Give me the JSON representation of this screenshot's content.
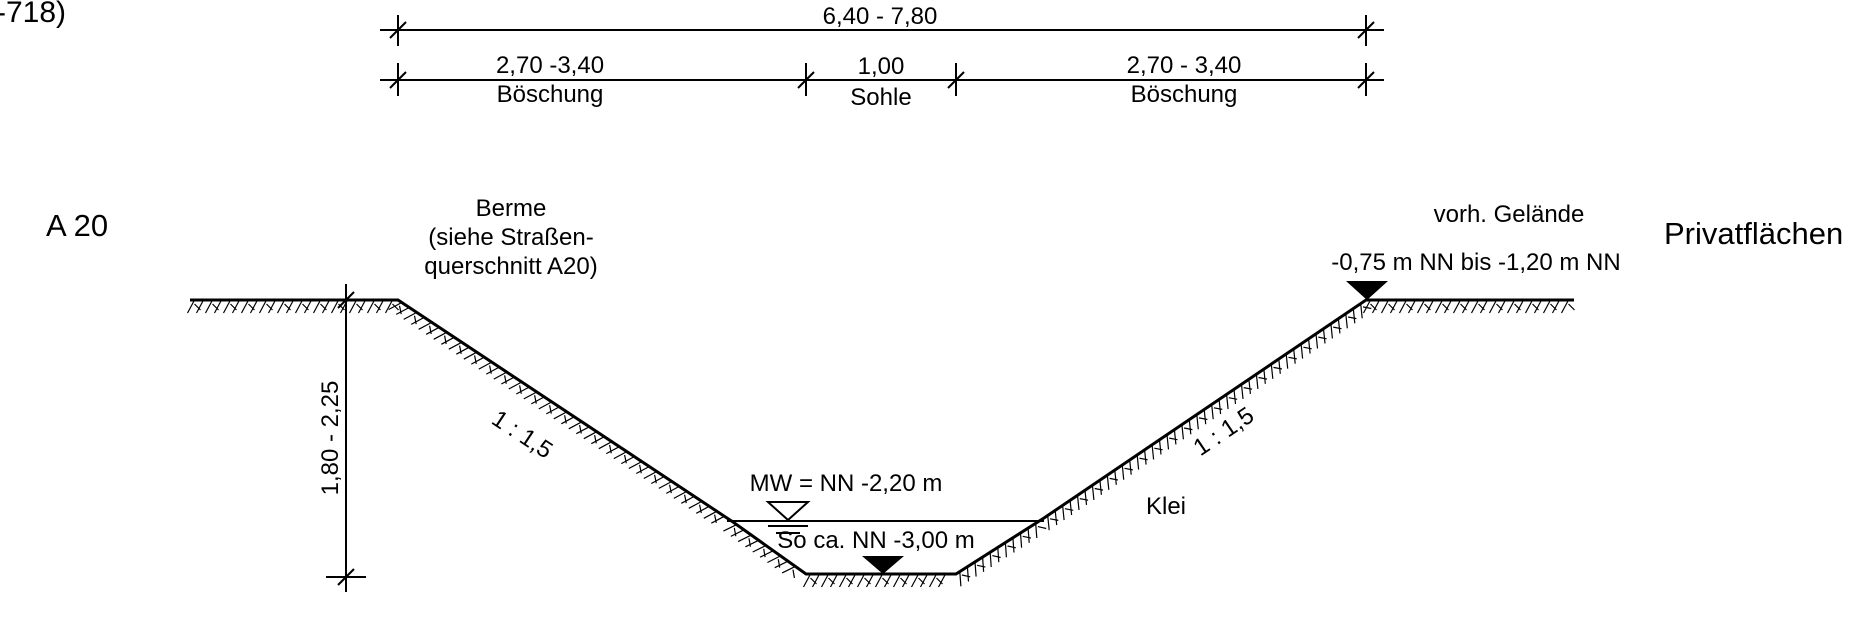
{
  "top_dimensions": {
    "total": "6,40 - 7,80",
    "left_width": "2,70 -3,40",
    "left_label": "Böschung",
    "center_width": "1,00",
    "center_label": "Sohle",
    "right_width": "2,70 - 3,40",
    "right_label": "Böschung"
  },
  "corner_fragment": "-718)",
  "left_side": {
    "road_label": "A 20",
    "berme_line1": "Berme",
    "berme_line2": "(siehe Straßen-",
    "berme_line3": "querschnitt A20)",
    "depth": "1,80 - 2,25",
    "slope": "1 : 1,5"
  },
  "right_side": {
    "terrain_label": "vorh. Gelände",
    "terrain_level": "-0,75 m NN bis -1,20 m NN",
    "private_label": "Privatflächen",
    "slope": "1 : 1,5",
    "soil": "Klei"
  },
  "water": {
    "mean_water": "MW = NN -2,20 m",
    "bottom": "So ca. NN -3,00 m"
  }
}
